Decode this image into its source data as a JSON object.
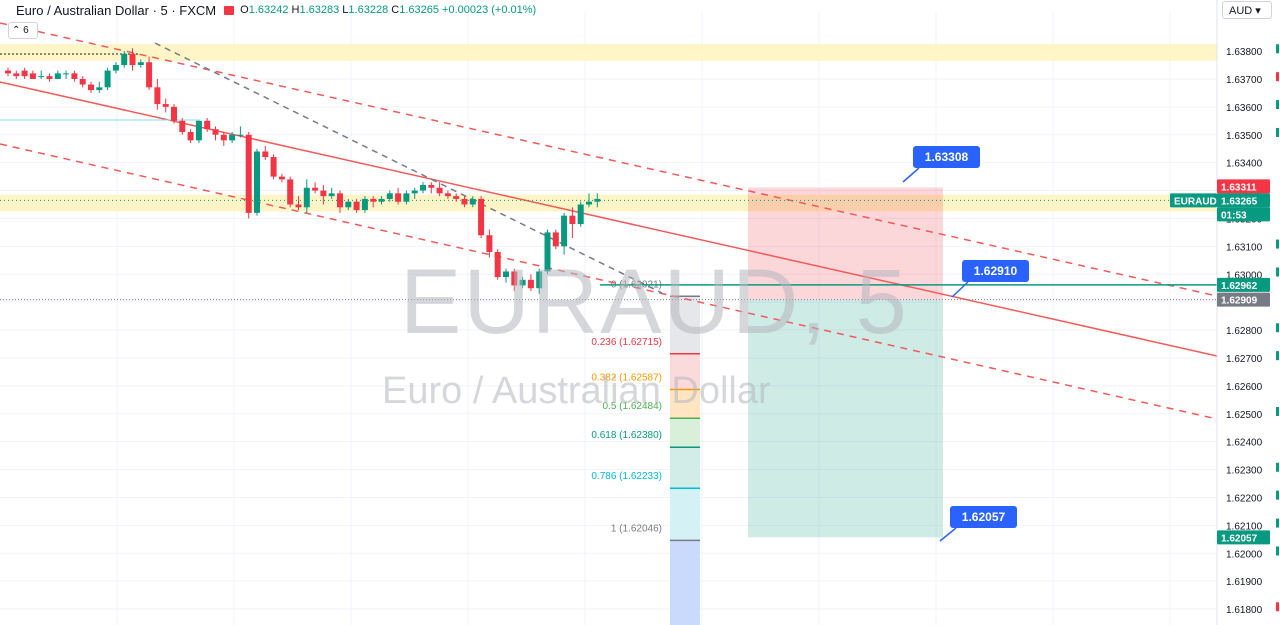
{
  "header": {
    "title": "Euro / Australian Dollar · 5 · FXCM",
    "open": "1.63242",
    "high": "1.63283",
    "low": "1.63228",
    "close": "1.63265",
    "change": "+0.00023 (+0.01%)",
    "currency": "AUD",
    "layout_count": "6"
  },
  "watermark": {
    "symbol": "EURAUD, 5",
    "name": "Euro / Australian Dollar"
  },
  "colors": {
    "up": "#089981",
    "down": "#f23645",
    "grid": "#f0f3fa",
    "zone": "#fff4c0",
    "trend": "#f15a5a"
  },
  "chart_data": {
    "type": "candlestick",
    "ylim": [
      1.6175,
      1.6394
    ],
    "y_ticks": [
      1.638,
      1.637,
      1.636,
      1.635,
      1.634,
      1.633,
      1.632,
      1.631,
      1.63,
      1.629,
      1.628,
      1.627,
      1.626,
      1.625,
      1.624,
      1.623,
      1.622,
      1.621,
      1.62,
      1.619,
      1.618
    ],
    "candles": [
      [
        1.6373,
        1.6374,
        1.6371,
        1.6372
      ],
      [
        1.6372,
        1.6373,
        1.637,
        1.6371
      ],
      [
        1.6373,
        1.6374,
        1.637,
        1.6371
      ],
      [
        1.6372,
        1.6373,
        1.637,
        1.637
      ],
      [
        1.6371,
        1.6373,
        1.637,
        1.6371
      ],
      [
        1.6371,
        1.6372,
        1.6369,
        1.637
      ],
      [
        1.637,
        1.6373,
        1.637,
        1.6372
      ],
      [
        1.6372,
        1.6373,
        1.637,
        1.6372
      ],
      [
        1.6372,
        1.6373,
        1.6369,
        1.637
      ],
      [
        1.637,
        1.6371,
        1.6367,
        1.6368
      ],
      [
        1.6368,
        1.6369,
        1.6365,
        1.6366
      ],
      [
        1.6366,
        1.6369,
        1.6365,
        1.6367
      ],
      [
        1.6367,
        1.6374,
        1.6366,
        1.6373
      ],
      [
        1.6373,
        1.6376,
        1.6372,
        1.6375
      ],
      [
        1.6375,
        1.638,
        1.6374,
        1.6379
      ],
      [
        1.6379,
        1.6381,
        1.6373,
        1.6375
      ],
      [
        1.6375,
        1.6377,
        1.6374,
        1.6376
      ],
      [
        1.6376,
        1.6378,
        1.6366,
        1.6367
      ],
      [
        1.6367,
        1.637,
        1.6359,
        1.6361
      ],
      [
        1.6361,
        1.6363,
        1.6358,
        1.636
      ],
      [
        1.636,
        1.6361,
        1.6354,
        1.6355
      ],
      [
        1.6355,
        1.6356,
        1.635,
        1.6351
      ],
      [
        1.6351,
        1.6352,
        1.6347,
        1.6348
      ],
      [
        1.6348,
        1.6355,
        1.6347,
        1.6355
      ],
      [
        1.6355,
        1.6356,
        1.6351,
        1.6352
      ],
      [
        1.6352,
        1.6353,
        1.6348,
        1.635
      ],
      [
        1.635,
        1.6351,
        1.6346,
        1.6348
      ],
      [
        1.6348,
        1.6351,
        1.6347,
        1.635
      ],
      [
        1.635,
        1.6353,
        1.6349,
        1.635
      ],
      [
        1.635,
        1.6351,
        1.632,
        1.6322
      ],
      [
        1.6322,
        1.6345,
        1.6321,
        1.6344
      ],
      [
        1.6344,
        1.6346,
        1.6341,
        1.6342
      ],
      [
        1.6342,
        1.6343,
        1.6334,
        1.6335
      ],
      [
        1.6335,
        1.6336,
        1.6333,
        1.6334
      ],
      [
        1.6334,
        1.6335,
        1.6324,
        1.6325
      ],
      [
        1.6325,
        1.6328,
        1.6323,
        1.6324
      ],
      [
        1.6324,
        1.6334,
        1.6322,
        1.6331
      ],
      [
        1.6331,
        1.6333,
        1.6329,
        1.633
      ],
      [
        1.633,
        1.6332,
        1.6325,
        1.6328
      ],
      [
        1.6328,
        1.6331,
        1.6327,
        1.6329
      ],
      [
        1.6329,
        1.633,
        1.6322,
        1.6324
      ],
      [
        1.6324,
        1.6327,
        1.6323,
        1.6326
      ],
      [
        1.6326,
        1.6327,
        1.6322,
        1.6323
      ],
      [
        1.6323,
        1.6328,
        1.6322,
        1.6327
      ],
      [
        1.6327,
        1.6328,
        1.6324,
        1.6326
      ],
      [
        1.6326,
        1.6328,
        1.6325,
        1.6327
      ],
      [
        1.6327,
        1.633,
        1.6326,
        1.6329
      ],
      [
        1.6329,
        1.6331,
        1.6325,
        1.6326
      ],
      [
        1.6326,
        1.633,
        1.6325,
        1.6329
      ],
      [
        1.6329,
        1.6331,
        1.6327,
        1.633
      ],
      [
        1.633,
        1.6333,
        1.6329,
        1.6332
      ],
      [
        1.6332,
        1.6333,
        1.6329,
        1.6331
      ],
      [
        1.6331,
        1.6333,
        1.6328,
        1.6329
      ],
      [
        1.6329,
        1.633,
        1.6327,
        1.6328
      ],
      [
        1.6328,
        1.6329,
        1.6326,
        1.6327
      ],
      [
        1.6327,
        1.6328,
        1.6324,
        1.6325
      ],
      [
        1.6325,
        1.6328,
        1.6324,
        1.6327
      ],
      [
        1.6327,
        1.6328,
        1.6313,
        1.6314
      ],
      [
        1.6314,
        1.6316,
        1.6306,
        1.6308
      ],
      [
        1.6308,
        1.6309,
        1.6298,
        1.6299
      ],
      [
        1.6299,
        1.6302,
        1.6297,
        1.6301
      ],
      [
        1.6301,
        1.6302,
        1.6294,
        1.6296
      ],
      [
        1.6296,
        1.6299,
        1.6295,
        1.6298
      ],
      [
        1.6298,
        1.63,
        1.6294,
        1.6295
      ],
      [
        1.6295,
        1.6302,
        1.6293,
        1.6301
      ],
      [
        1.6301,
        1.6316,
        1.63,
        1.6315
      ],
      [
        1.6315,
        1.6316,
        1.6309,
        1.631
      ],
      [
        1.631,
        1.6322,
        1.6307,
        1.6321
      ],
      [
        1.6321,
        1.6324,
        1.6313,
        1.6318
      ],
      [
        1.6318,
        1.6326,
        1.6317,
        1.6325
      ],
      [
        1.6325,
        1.6329,
        1.6324,
        1.6326
      ],
      [
        1.6326,
        1.6329,
        1.6324,
        1.6327
      ]
    ],
    "price_labels": [
      {
        "text": "1.63311",
        "price": 1.63311,
        "color": "#f23645"
      },
      {
        "text": "EURAUD",
        "price": 1.63265,
        "color": "#089981"
      },
      {
        "text": "1.63265",
        "price": 1.63265,
        "color": "#089981"
      },
      {
        "text": "01:53",
        "price": 1.63222,
        "color": "#089981"
      },
      {
        "text": "1.62962",
        "price": 1.62962,
        "color": "#089981"
      },
      {
        "text": "1.62909",
        "price": 1.62909,
        "color": "#787b86"
      },
      {
        "text": "1.62057",
        "price": 1.62057,
        "color": "#089981"
      }
    ],
    "fib_levels": [
      {
        "ratio": "0",
        "price": "1.62921",
        "p": 1.62921,
        "color": "#787b86",
        "fill": "#e6e7ea"
      },
      {
        "ratio": "0.236",
        "price": "1.62715",
        "p": 1.62715,
        "color": "#f23645",
        "fill": "#fadadb"
      },
      {
        "ratio": "0.382",
        "price": "1.62587",
        "p": 1.62587,
        "color": "#ff9800",
        "fill": "#ffe5c2"
      },
      {
        "ratio": "0.5",
        "price": "1.62484",
        "p": 1.62484,
        "color": "#4caf50",
        "fill": "#d8efd9"
      },
      {
        "ratio": "0.618",
        "price": "1.62380",
        "p": 1.6238,
        "color": "#089981",
        "fill": "#d2ece8"
      },
      {
        "ratio": "0.786",
        "price": "1.62233",
        "p": 1.62233,
        "color": "#00bcd4",
        "fill": "#d4f2f6"
      },
      {
        "ratio": "1",
        "price": "1.62046",
        "p": 1.62046,
        "color": "#787b86",
        "fill": "#e6e7ea"
      }
    ],
    "callouts": [
      "1.63308",
      "1.62910",
      "1.62057"
    ],
    "position": {
      "entry": 1.62909,
      "stop": 1.63311,
      "target": 1.62057
    },
    "zones": [
      [
        1.63765,
        1.63825
      ],
      [
        1.63225,
        1.63285
      ]
    ],
    "watch_line": 1.62962
  }
}
